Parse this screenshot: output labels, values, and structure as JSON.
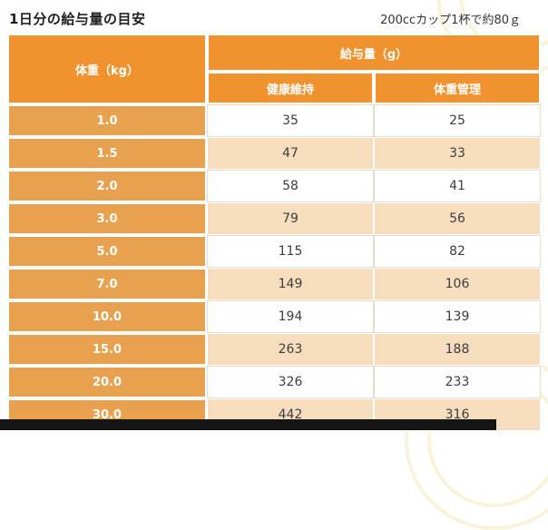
{
  "header": {
    "title": "1日分の給与量の目安",
    "note": "200ccカップ1杯で約80ｇ"
  },
  "chart_data": {
    "type": "table",
    "title": "1日分の給与量の目安",
    "note": "200ccカップ1杯で約80ｇ",
    "weight_label": "体重（kg）",
    "column_group_label": "給与量（g）",
    "sub_columns": [
      "健康維持",
      "体重管理"
    ],
    "rows": [
      {
        "weight": "1.0",
        "maintenance": "35",
        "weight_control": "25"
      },
      {
        "weight": "1.5",
        "maintenance": "47",
        "weight_control": "33"
      },
      {
        "weight": "2.0",
        "maintenance": "58",
        "weight_control": "41"
      },
      {
        "weight": "3.0",
        "maintenance": "79",
        "weight_control": "56"
      },
      {
        "weight": "5.0",
        "maintenance": "115",
        "weight_control": "82"
      },
      {
        "weight": "7.0",
        "maintenance": "149",
        "weight_control": "106"
      },
      {
        "weight": "10.0",
        "maintenance": "194",
        "weight_control": "139"
      },
      {
        "weight": "15.0",
        "maintenance": "263",
        "weight_control": "188"
      },
      {
        "weight": "20.0",
        "maintenance": "326",
        "weight_control": "233"
      },
      {
        "weight": "30.0",
        "maintenance": "442",
        "weight_control": "316"
      }
    ]
  },
  "colors": {
    "header_orange": "#f0932f",
    "weight_cell_orange": "#e8a14e",
    "stripe_tan": "#f6ddbe",
    "bottom_strip_black": "#141414"
  }
}
